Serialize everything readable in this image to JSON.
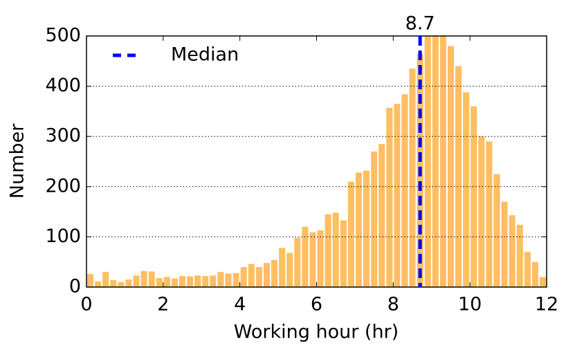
{
  "chart_data": {
    "type": "histogram",
    "xlabel": "Working hour (hr)",
    "ylabel": "Number",
    "bins": [
      0,
      0.2,
      0.4,
      0.6,
      0.8,
      1,
      1.2,
      1.4,
      1.6,
      1.8,
      2,
      2.2,
      2.4,
      2.6,
      2.8,
      3,
      3.2,
      3.4,
      3.6,
      3.8,
      4,
      4.2,
      4.4,
      4.6,
      4.8,
      5,
      5.2,
      5.4,
      5.6,
      5.8,
      6,
      6.2,
      6.4,
      6.6,
      6.8,
      7,
      7.2,
      7.4,
      7.6,
      7.8,
      8,
      8.2,
      8.4,
      8.6,
      8.8,
      9,
      9.2,
      9.4,
      9.6,
      9.8,
      10,
      10.2,
      10.4,
      10.6,
      10.8,
      11,
      11.2,
      11.4,
      11.6,
      11.8,
      12
    ],
    "values": [
      26,
      11,
      30,
      14,
      10,
      15,
      23,
      32,
      31,
      18,
      20,
      17,
      22,
      21,
      23,
      22,
      23,
      30,
      27,
      28,
      40,
      46,
      40,
      48,
      54,
      78,
      68,
      98,
      120,
      109,
      113,
      145,
      148,
      133,
      210,
      228,
      232,
      270,
      285,
      357,
      365,
      384,
      435,
      465,
      520,
      520,
      510,
      480,
      440,
      388,
      360,
      300,
      290,
      225,
      170,
      143,
      124,
      70,
      50,
      20
    ],
    "color": "#ffb347",
    "reference_lines": [
      {
        "name": "Median",
        "value": 8.7,
        "color": "#0000ff"
      }
    ],
    "xlim": [
      0,
      12
    ],
    "xticks": [
      0,
      2,
      4,
      6,
      8,
      10,
      12
    ],
    "ylim": [
      0,
      500
    ],
    "yticks": [
      0,
      100,
      200,
      300,
      400,
      500
    ],
    "grid": true,
    "legend": "upper left"
  }
}
